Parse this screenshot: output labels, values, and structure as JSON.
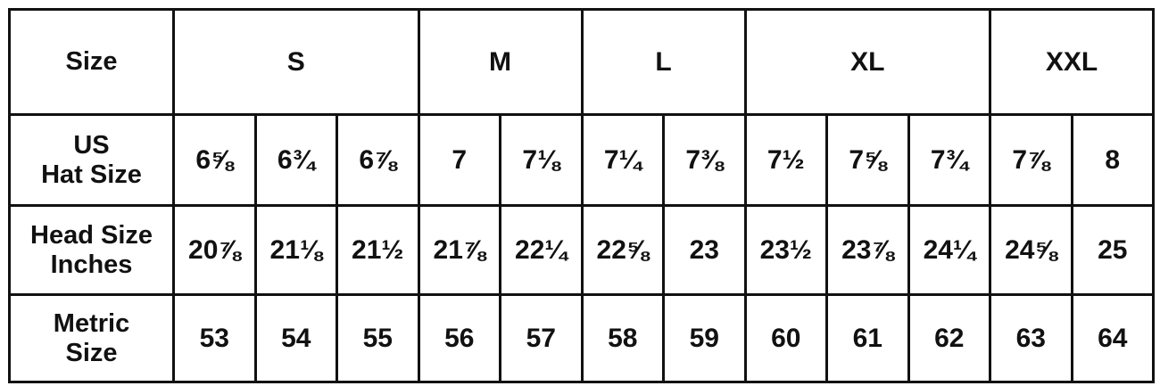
{
  "row_labels": {
    "size": "Size",
    "hat": [
      "US",
      "Hat Size"
    ],
    "head": [
      "Head Size",
      "Inches"
    ],
    "metric": [
      "Metric",
      "Size"
    ]
  },
  "groups": [
    {
      "size": "S",
      "hat": [
        "6⅝",
        "6¾",
        "6⅞"
      ],
      "head": [
        "20⅞",
        "21⅛",
        "21½"
      ],
      "metric": [
        53,
        54,
        55
      ]
    },
    {
      "size": "M",
      "hat": [
        "7",
        "7⅛"
      ],
      "head": [
        "21⅞",
        "22¼"
      ],
      "metric": [
        56,
        57
      ]
    },
    {
      "size": "L",
      "hat": [
        "7¼",
        "7⅜"
      ],
      "head": [
        "22⅝",
        "23"
      ],
      "metric": [
        58,
        59
      ]
    },
    {
      "size": "XL",
      "hat": [
        "7½",
        "7⅝",
        "7¾"
      ],
      "head": [
        "23½",
        "23⅞",
        "24¼"
      ],
      "metric": [
        60,
        61,
        62
      ]
    },
    {
      "size": "XXL",
      "hat": [
        "7⅞",
        "8"
      ],
      "head": [
        "24⅝",
        "25"
      ],
      "metric": [
        63,
        64
      ]
    }
  ]
}
